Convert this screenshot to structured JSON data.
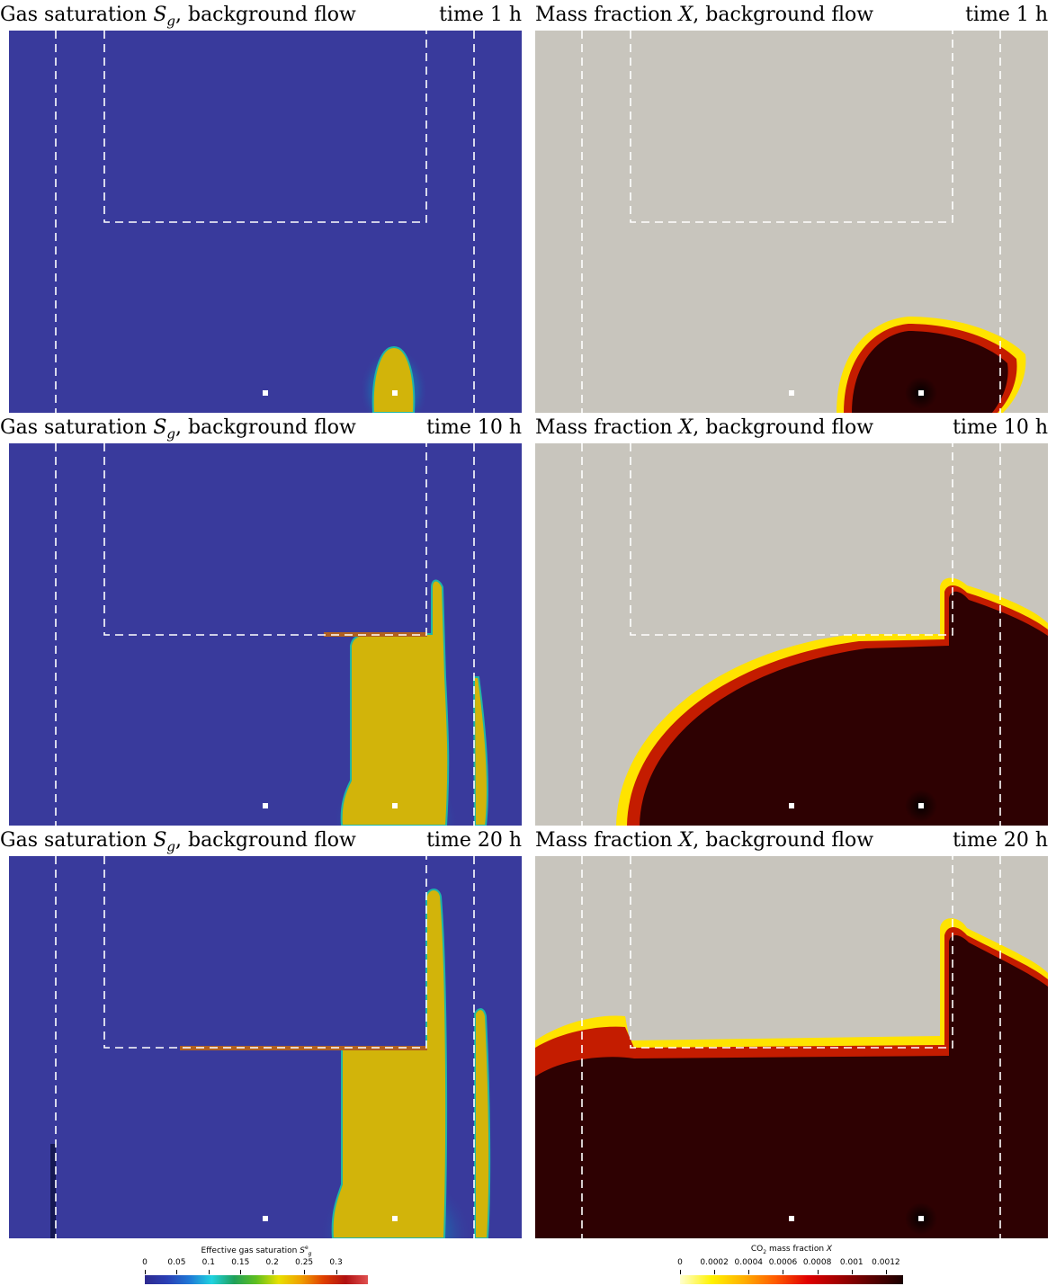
{
  "chart_data": [
    {
      "type": "heatmap",
      "row": 0,
      "col": 0,
      "title": "Gas saturation",
      "symbol": "S",
      "sub": "g",
      "suffix": ", background flow",
      "time": "time 1 h",
      "field": "gas",
      "time_h": 1
    },
    {
      "type": "heatmap",
      "row": 0,
      "col": 1,
      "title": "Mass fraction",
      "symbol": "X",
      "sub": "",
      "suffix": ", background flow",
      "time": "time 1 h",
      "field": "mass",
      "time_h": 1
    },
    {
      "type": "heatmap",
      "row": 1,
      "col": 0,
      "title": "Gas saturation",
      "symbol": "S",
      "sub": "g",
      "suffix": ", background flow",
      "time": "time 10 h",
      "field": "gas",
      "time_h": 10
    },
    {
      "type": "heatmap",
      "row": 1,
      "col": 1,
      "title": "Mass fraction",
      "symbol": "X",
      "sub": "",
      "suffix": ", background flow",
      "time": "time 10 h",
      "field": "mass",
      "time_h": 10
    },
    {
      "type": "heatmap",
      "row": 2,
      "col": 0,
      "title": "Gas saturation",
      "symbol": "S",
      "sub": "g",
      "suffix": ", background flow",
      "time": "time 20 h",
      "field": "gas",
      "time_h": 20
    },
    {
      "type": "heatmap",
      "row": 2,
      "col": 1,
      "title": "Mass fraction",
      "symbol": "X",
      "sub": "",
      "suffix": ", background flow",
      "time": "time 20 h",
      "field": "mass",
      "time_h": 20
    }
  ],
  "colorbars": {
    "gas": {
      "title": "Effective gas saturation",
      "title_symbol": "S",
      "title_sub": "g",
      "title_sup": "e",
      "min": 0,
      "max": 0.35,
      "ticks": [
        "0",
        "0.05",
        "0.1",
        "0.15",
        "0.2",
        "0.25",
        "0.3"
      ],
      "stops": [
        "#2e2a8f",
        "#2a3fb5",
        "#1f78d6",
        "#1fd3e0",
        "#1fa05a",
        "#5fbf1f",
        "#e8e000",
        "#f0a000",
        "#e04000",
        "#b01010",
        "#e05050"
      ]
    },
    "mass": {
      "title": "CO",
      "title_sub": "2",
      "title_rest": " mass fraction",
      "title_symbol": "X",
      "min": 0,
      "max": 0.0013,
      "ticks": [
        "0",
        "0.0002",
        "0.0004",
        "0.0006",
        "0.0008",
        "0.001",
        "0.0012"
      ],
      "stops": [
        "#ffffd0",
        "#fff200",
        "#ffb000",
        "#ff5a00",
        "#e00000",
        "#a00000",
        "#5a0000",
        "#1a0000"
      ]
    }
  },
  "colors": {
    "gas_background": "#393A9C",
    "gas_plume": "#D2B40A",
    "gas_rim": "#1FB5A8",
    "mass_background": "#C8C5BD",
    "mass_plume": "#2E0102",
    "mass_edge": "#C41C00",
    "mass_outer": "#FFE300",
    "dash": "#FFFFFF"
  }
}
